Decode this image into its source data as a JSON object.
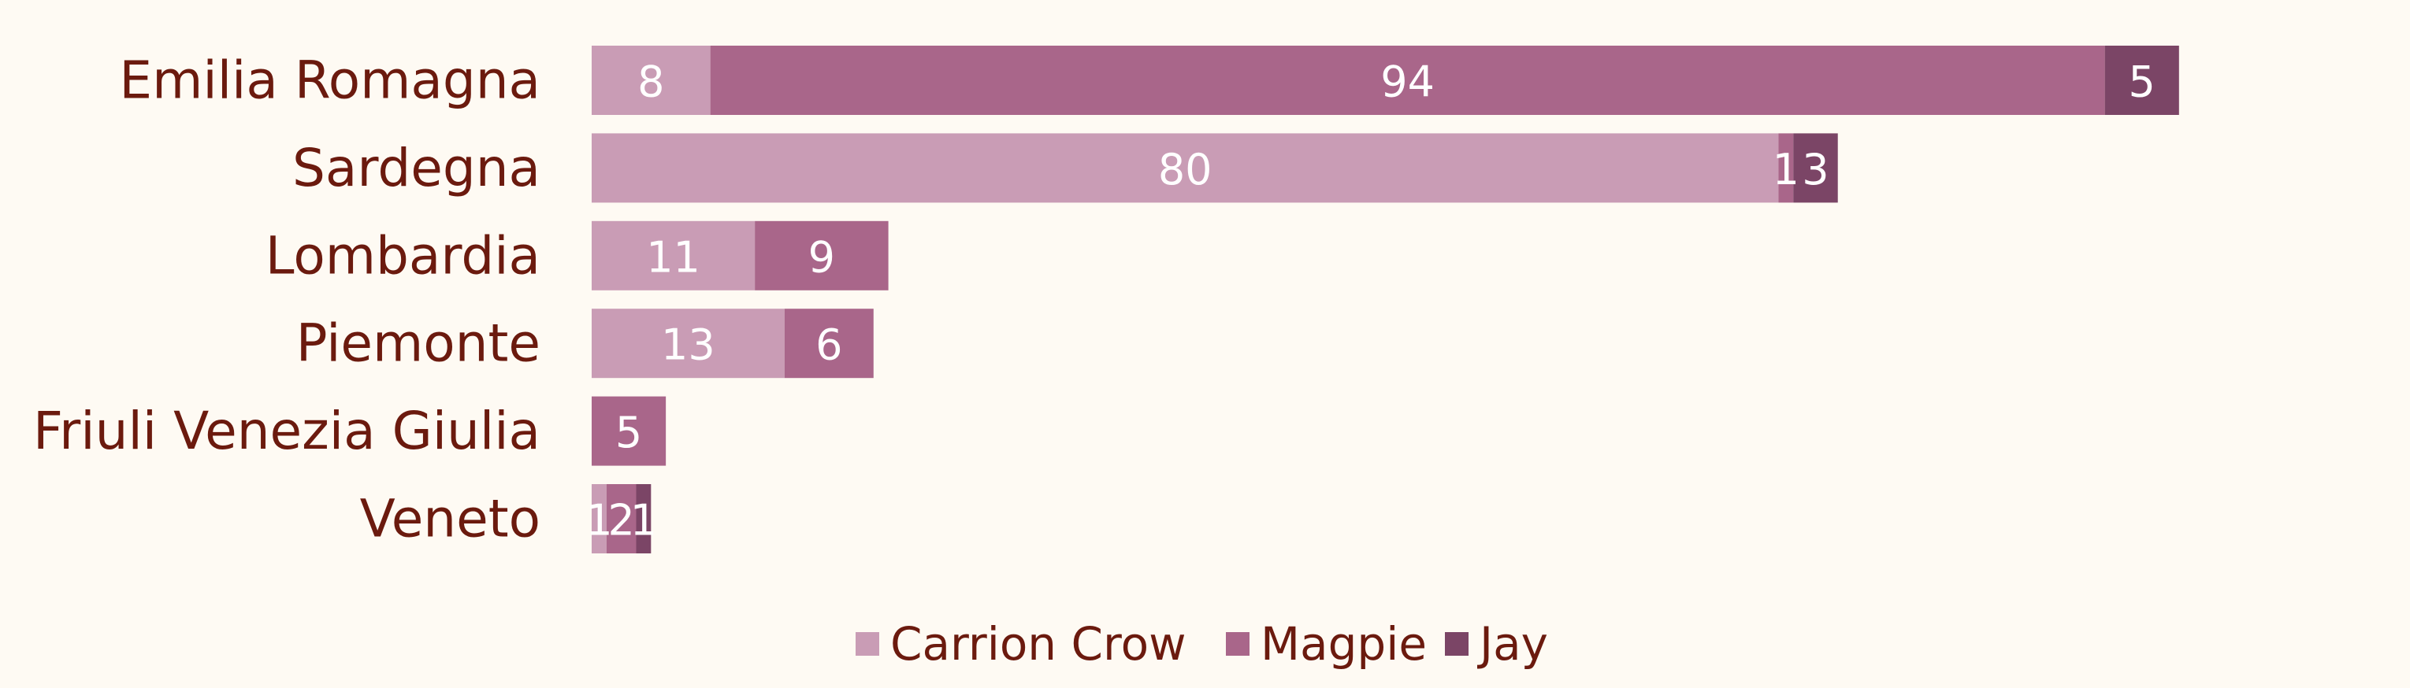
{
  "chart_data": {
    "type": "bar",
    "orientation": "horizontal",
    "stacked": true,
    "categories": [
      "Emilia Romagna",
      "Sardegna",
      "Lombardia",
      "Piemonte",
      "Friuli Venezia Giulia",
      "Veneto"
    ],
    "series": [
      {
        "name": "Carrion Crow",
        "color": "#c99cb5",
        "values": [
          8,
          80,
          11,
          13,
          0,
          1
        ]
      },
      {
        "name": "Magpie",
        "color": "#a9668a",
        "values": [
          94,
          1,
          9,
          6,
          5,
          2
        ]
      },
      {
        "name": "Jay",
        "color": "#7b4566",
        "values": [
          5,
          3,
          0,
          0,
          0,
          1
        ]
      }
    ],
    "xlim": [
      0,
      107
    ],
    "grid": false,
    "legend_position": "bottom",
    "data_labels": true
  }
}
